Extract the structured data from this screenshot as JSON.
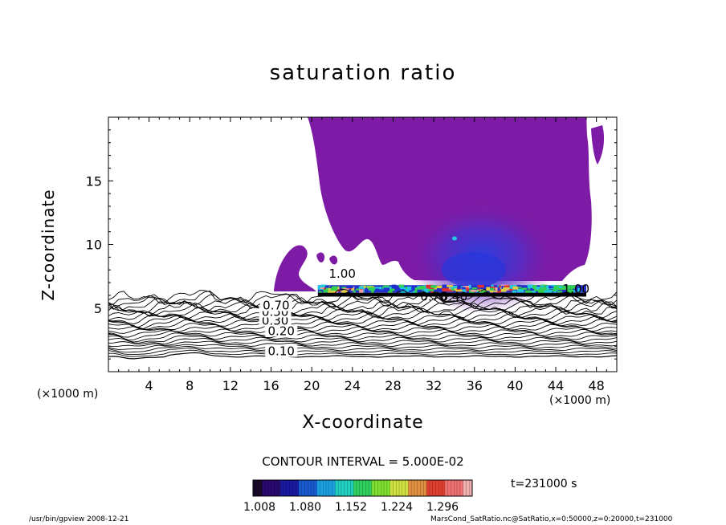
{
  "chart_data": {
    "type": "heatmap",
    "title": "saturation ratio",
    "xlabel": "X-coordinate",
    "ylabel": "Z-coordinate",
    "x_unit_left": "(×1000 m)",
    "x_unit_right": "(×1000 m)",
    "xlim": [
      0,
      50
    ],
    "ylim": [
      0,
      20
    ],
    "x_ticks": [
      4,
      8,
      12,
      16,
      20,
      24,
      28,
      32,
      36,
      40,
      44,
      48
    ],
    "y_ticks": [
      5,
      10,
      15
    ],
    "contour_interval_label": "CONTOUR INTERVAL = 5.000E-02",
    "contour_labels": [
      {
        "text": "0.10",
        "x": 17.0,
        "z": 1.6
      },
      {
        "text": "0.20",
        "x": 17.0,
        "z": 3.2
      },
      {
        "text": "0.30",
        "x": 16.4,
        "z": 4.0
      },
      {
        "text": "0.50",
        "x": 16.4,
        "z": 4.7
      },
      {
        "text": "0.70",
        "x": 16.5,
        "z": 5.2
      },
      {
        "text": "1.00",
        "x": 23.0,
        "z": 7.7
      },
      {
        "text": "1.00",
        "x": 46.0,
        "z": 6.5
      },
      {
        "text": "0.70",
        "x": 32.0,
        "z": 5.9
      },
      {
        "text": "0.40",
        "x": 34.0,
        "z": 5.9
      }
    ],
    "colorbar": {
      "ticks": [
        "1.008",
        "1.080",
        "1.152",
        "1.224",
        "1.296"
      ],
      "colors": [
        "#1a0a2a",
        "#2a0a70",
        "#1a1aa0",
        "#1a5ad0",
        "#1aa0e0",
        "#20d0c0",
        "#30d060",
        "#80e030",
        "#d0e040",
        "#e09040",
        "#e04030",
        "#f07070",
        "#f0b0b0"
      ]
    },
    "time_label": "t=231000 s",
    "colors": {
      "supersaturated_fill": "#7e1ba6",
      "mid_blue": "#4a2fc0",
      "band_colors": [
        "#2030d0",
        "#20c8e0",
        "#30d050",
        "#e0d040",
        "#e03030",
        "#f4a0a0"
      ]
    }
  },
  "footer": {
    "left": "/usr/bin/gpview   2008-12-21",
    "right": "MarsCond_SatRatio.nc@SatRatio,x=0:50000,z=0:20000,t=231000"
  }
}
